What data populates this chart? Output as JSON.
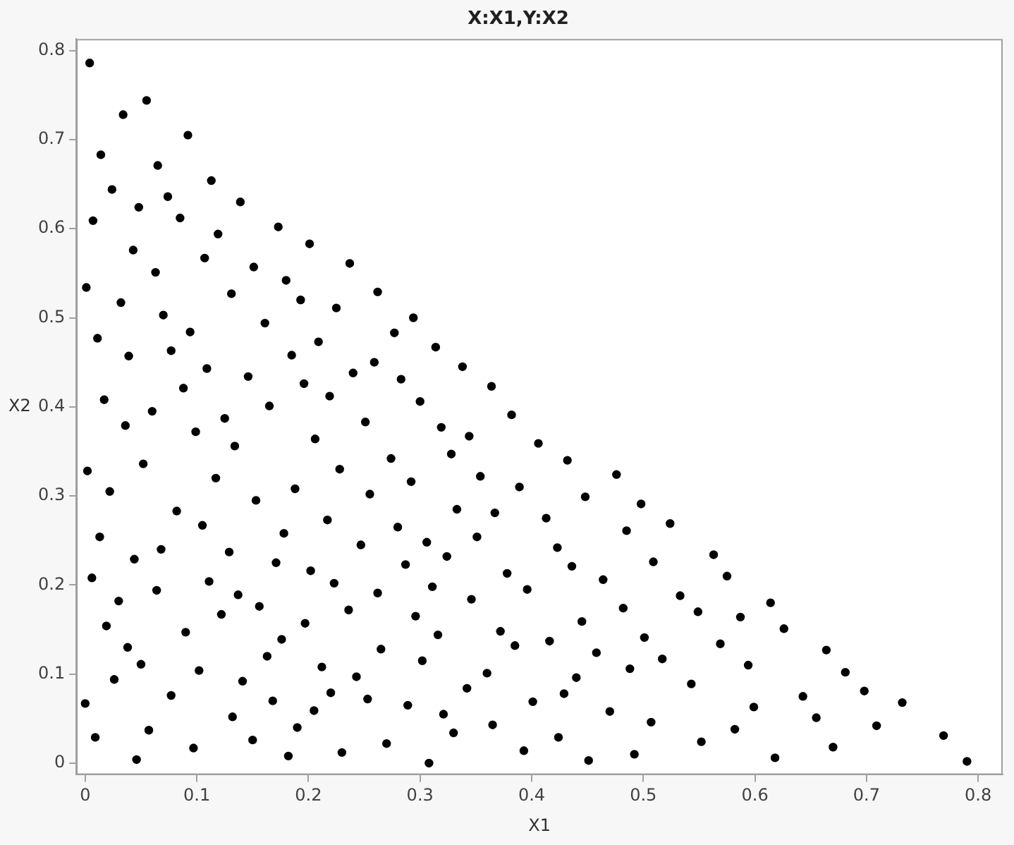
{
  "chart_data": {
    "type": "scatter",
    "title": "X:X1,Y:X2",
    "xlabel": "X1",
    "ylabel": "X2",
    "xlim": [
      -0.008,
      0.822
    ],
    "ylim": [
      -0.013,
      0.813
    ],
    "xticks": [
      0,
      0.1,
      0.2,
      0.3,
      0.4,
      0.5,
      0.6,
      0.7,
      0.8
    ],
    "yticks": [
      0,
      0.1,
      0.2,
      0.3,
      0.4,
      0.5,
      0.6,
      0.7,
      0.8
    ],
    "grid": false,
    "legend": false,
    "marker": "circle",
    "series": [
      {
        "color": "#000000",
        "x": [
          0.004,
          0.034,
          0.055,
          0.014,
          0.092,
          0.024,
          0.065,
          0.007,
          0.048,
          0.074,
          0.113,
          0.085,
          0.139,
          0.001,
          0.043,
          0.119,
          0.173,
          0.063,
          0.107,
          0.201,
          0.032,
          0.151,
          0.18,
          0.131,
          0.237,
          0.011,
          0.07,
          0.193,
          0.225,
          0.262,
          0.039,
          0.094,
          0.161,
          0.077,
          0.209,
          0.185,
          0.109,
          0.259,
          0.24,
          0.088,
          0.146,
          0.196,
          0.219,
          0.017,
          0.06,
          0.165,
          0.294,
          0.277,
          0.314,
          0.338,
          0.283,
          0.364,
          0.3,
          0.036,
          0.125,
          0.251,
          0.099,
          0.134,
          0.206,
          0.002,
          0.052,
          0.228,
          0.117,
          0.022,
          0.188,
          0.153,
          0.255,
          0.082,
          0.013,
          0.105,
          0.217,
          0.178,
          0.068,
          0.129,
          0.247,
          0.044,
          0.171,
          0.006,
          0.202,
          0.111,
          0.064,
          0.223,
          0.262,
          0.137,
          0.03,
          0.156,
          0.236,
          0.122,
          0.197,
          0.019,
          0.09,
          0.176,
          0.038,
          0.163,
          0.265,
          0.05,
          0.212,
          0.243,
          0.026,
          0.102,
          0.141,
          0.0,
          0.077,
          0.22,
          0.168,
          0.253,
          0.205,
          0.132,
          0.057,
          0.19,
          0.009,
          0.15,
          0.097,
          0.23,
          0.046,
          0.182,
          0.382,
          0.319,
          0.344,
          0.406,
          0.274,
          0.328,
          0.432,
          0.476,
          0.292,
          0.354,
          0.389,
          0.448,
          0.498,
          0.333,
          0.367,
          0.413,
          0.524,
          0.28,
          0.485,
          0.306,
          0.351,
          0.423,
          0.324,
          0.509,
          0.287,
          0.436,
          0.378,
          0.464,
          0.311,
          0.396,
          0.346,
          0.533,
          0.482,
          0.296,
          0.445,
          0.316,
          0.372,
          0.501,
          0.416,
          0.385,
          0.458,
          0.517,
          0.302,
          0.488,
          0.36,
          0.543,
          0.44,
          0.342,
          0.429,
          0.401,
          0.289,
          0.321,
          0.47,
          0.507,
          0.33,
          0.365,
          0.424,
          0.27,
          0.393,
          0.492,
          0.451,
          0.308,
          0.563,
          0.575,
          0.549,
          0.614,
          0.587,
          0.626,
          0.569,
          0.664,
          0.594,
          0.681,
          0.643,
          0.698,
          0.599,
          0.732,
          0.655,
          0.582,
          0.709,
          0.552,
          0.769,
          0.67,
          0.618,
          0.79
        ],
        "values": [
          0.786,
          0.728,
          0.744,
          0.683,
          0.705,
          0.644,
          0.671,
          0.609,
          0.624,
          0.636,
          0.654,
          0.612,
          0.63,
          0.534,
          0.576,
          0.594,
          0.602,
          0.551,
          0.567,
          0.583,
          0.517,
          0.557,
          0.542,
          0.527,
          0.561,
          0.477,
          0.503,
          0.52,
          0.511,
          0.529,
          0.457,
          0.484,
          0.494,
          0.463,
          0.473,
          0.458,
          0.443,
          0.45,
          0.438,
          0.421,
          0.434,
          0.426,
          0.412,
          0.408,
          0.395,
          0.401,
          0.5,
          0.483,
          0.467,
          0.445,
          0.431,
          0.423,
          0.406,
          0.379,
          0.387,
          0.383,
          0.372,
          0.356,
          0.364,
          0.328,
          0.336,
          0.33,
          0.32,
          0.305,
          0.308,
          0.295,
          0.302,
          0.283,
          0.254,
          0.267,
          0.273,
          0.258,
          0.24,
          0.237,
          0.245,
          0.229,
          0.225,
          0.208,
          0.216,
          0.204,
          0.194,
          0.202,
          0.191,
          0.189,
          0.182,
          0.176,
          0.172,
          0.167,
          0.157,
          0.154,
          0.147,
          0.139,
          0.13,
          0.12,
          0.128,
          0.111,
          0.108,
          0.097,
          0.094,
          0.104,
          0.092,
          0.067,
          0.076,
          0.079,
          0.07,
          0.072,
          0.059,
          0.052,
          0.037,
          0.04,
          0.029,
          0.026,
          0.017,
          0.012,
          0.004,
          0.008,
          0.391,
          0.377,
          0.367,
          0.359,
          0.342,
          0.347,
          0.34,
          0.324,
          0.316,
          0.322,
          0.31,
          0.299,
          0.291,
          0.285,
          0.281,
          0.275,
          0.269,
          0.265,
          0.261,
          0.248,
          0.254,
          0.242,
          0.232,
          0.226,
          0.223,
          0.221,
          0.213,
          0.206,
          0.198,
          0.195,
          0.184,
          0.188,
          0.174,
          0.165,
          0.159,
          0.144,
          0.148,
          0.141,
          0.137,
          0.132,
          0.124,
          0.117,
          0.115,
          0.106,
          0.101,
          0.089,
          0.096,
          0.084,
          0.078,
          0.069,
          0.065,
          0.055,
          0.058,
          0.046,
          0.034,
          0.043,
          0.029,
          0.022,
          0.014,
          0.01,
          0.003,
          0.0,
          0.234,
          0.21,
          0.17,
          0.18,
          0.164,
          0.151,
          0.134,
          0.127,
          0.11,
          0.102,
          0.075,
          0.081,
          0.063,
          0.068,
          0.051,
          0.038,
          0.042,
          0.024,
          0.031,
          0.018,
          0.006,
          0.002
        ]
      }
    ]
  }
}
